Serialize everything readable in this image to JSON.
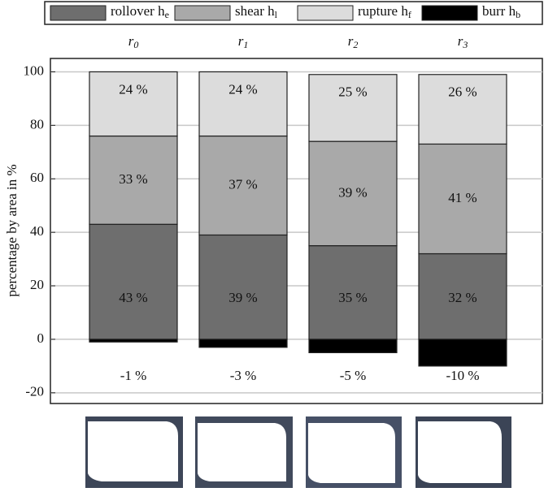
{
  "chart_data": {
    "type": "stacked-bar",
    "categories": [
      "r0",
      "r1",
      "r2",
      "r3"
    ],
    "y_label": "percentage by area in %",
    "ylim": [
      -24,
      105
    ],
    "yticks": [
      -20,
      0,
      20,
      40,
      60,
      80,
      100
    ],
    "grid": true,
    "series": [
      {
        "name": "rollover he",
        "color": "#6e6e6e",
        "values": [
          43,
          39,
          35,
          32
        ],
        "value_labels": [
          "43 %",
          "39 %",
          "35 %",
          "32 %"
        ]
      },
      {
        "name": "shear hl",
        "color": "#a9a9a9",
        "values": [
          33,
          37,
          39,
          41
        ],
        "value_labels": [
          "33 %",
          "37 %",
          "39 %",
          "41 %"
        ]
      },
      {
        "name": "rupture hf",
        "color": "#dcdcdc",
        "values": [
          24,
          24,
          25,
          26
        ],
        "value_labels": [
          "24 %",
          "24 %",
          "25 %",
          "26 %"
        ]
      },
      {
        "name": "burr hb",
        "color": "#000000",
        "values": [
          -1,
          -3,
          -5,
          -10
        ],
        "value_labels": [
          "-1 %",
          "-3 %",
          "-5 %",
          "-10 %"
        ]
      }
    ]
  }
}
